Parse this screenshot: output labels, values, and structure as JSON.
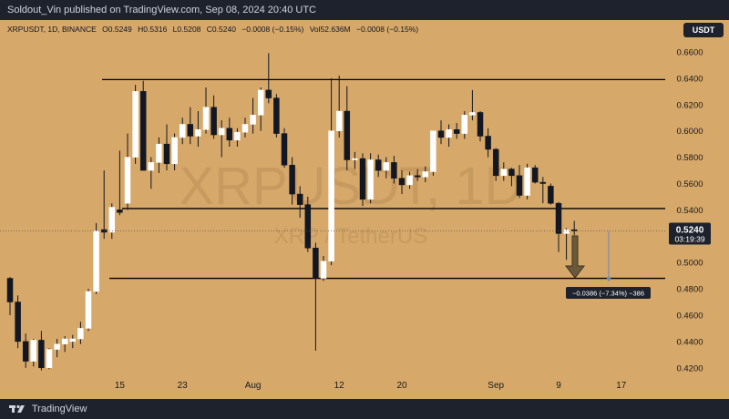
{
  "header": {
    "published_text": "Soldout_Vin published on TradingView.com, Sep 08, 2024 20:40 UTC"
  },
  "symbol_line": {
    "symbol": "XRPUSDT, 1D, BINANCE",
    "open": "O0.5249",
    "high": "H0.5316",
    "low": "L0.5208",
    "close": "C0.5240",
    "change": "−0.0008 (−0.15%)",
    "volume": "Vol52.636M",
    "volume_change": "−0.0008 (−0.15%)"
  },
  "currency_badge": "USDT",
  "footer": {
    "brand": "TradingView"
  },
  "colors": {
    "background": "#d6a86a",
    "bull": "#ffffff",
    "bear": "#131722",
    "line": "#000000",
    "arrow": "#6b5a3a",
    "price_label_bg": "#1e222d"
  },
  "chart_data": {
    "type": "candlestick",
    "title": "",
    "ylim": [
      0.41,
      0.67
    ],
    "y_ticks": [
      "0.6600",
      "0.6400",
      "0.6200",
      "0.6000",
      "0.5800",
      "0.5600",
      "0.5400",
      "0.5200",
      "0.5000",
      "0.4800",
      "0.4600",
      "0.4400",
      "0.4200"
    ],
    "x_ticks": [
      {
        "label": "15",
        "day": 14
      },
      {
        "label": "23",
        "day": 22
      },
      {
        "label": "Aug",
        "day": 31
      },
      {
        "label": "12",
        "day": 42
      },
      {
        "label": "20",
        "day": 50
      },
      {
        "label": "Sep",
        "day": 62
      },
      {
        "label": "9",
        "day": 70
      },
      {
        "label": "17",
        "day": 78
      }
    ],
    "candles": [
      {
        "o": 0.488,
        "h": 0.489,
        "l": 0.46,
        "c": 0.47
      },
      {
        "o": 0.47,
        "h": 0.475,
        "l": 0.435,
        "c": 0.44
      },
      {
        "o": 0.44,
        "h": 0.446,
        "l": 0.42,
        "c": 0.425
      },
      {
        "o": 0.425,
        "h": 0.442,
        "l": 0.421,
        "c": 0.441
      },
      {
        "o": 0.441,
        "h": 0.448,
        "l": 0.418,
        "c": 0.42
      },
      {
        "o": 0.42,
        "h": 0.435,
        "l": 0.419,
        "c": 0.434
      },
      {
        "o": 0.434,
        "h": 0.442,
        "l": 0.428,
        "c": 0.438
      },
      {
        "o": 0.438,
        "h": 0.444,
        "l": 0.432,
        "c": 0.442
      },
      {
        "o": 0.44,
        "h": 0.445,
        "l": 0.435,
        "c": 0.442
      },
      {
        "o": 0.442,
        "h": 0.455,
        "l": 0.438,
        "c": 0.45
      },
      {
        "o": 0.45,
        "h": 0.48,
        "l": 0.448,
        "c": 0.478
      },
      {
        "o": 0.478,
        "h": 0.53,
        "l": 0.476,
        "c": 0.524
      },
      {
        "o": 0.525,
        "h": 0.57,
        "l": 0.518,
        "c": 0.523
      },
      {
        "o": 0.523,
        "h": 0.545,
        "l": 0.518,
        "c": 0.542
      },
      {
        "o": 0.54,
        "h": 0.585,
        "l": 0.536,
        "c": 0.538
      },
      {
        "o": 0.545,
        "h": 0.598,
        "l": 0.54,
        "c": 0.58
      },
      {
        "o": 0.58,
        "h": 0.635,
        "l": 0.575,
        "c": 0.63
      },
      {
        "o": 0.63,
        "h": 0.638,
        "l": 0.57,
        "c": 0.57
      },
      {
        "o": 0.57,
        "h": 0.58,
        "l": 0.556,
        "c": 0.576
      },
      {
        "o": 0.576,
        "h": 0.595,
        "l": 0.568,
        "c": 0.59
      },
      {
        "o": 0.59,
        "h": 0.605,
        "l": 0.57,
        "c": 0.575
      },
      {
        "o": 0.575,
        "h": 0.598,
        "l": 0.57,
        "c": 0.595
      },
      {
        "o": 0.595,
        "h": 0.61,
        "l": 0.59,
        "c": 0.605
      },
      {
        "o": 0.605,
        "h": 0.618,
        "l": 0.59,
        "c": 0.596
      },
      {
        "o": 0.596,
        "h": 0.615,
        "l": 0.588,
        "c": 0.601
      },
      {
        "o": 0.601,
        "h": 0.633,
        "l": 0.598,
        "c": 0.618
      },
      {
        "o": 0.618,
        "h": 0.627,
        "l": 0.594,
        "c": 0.597
      },
      {
        "o": 0.597,
        "h": 0.608,
        "l": 0.58,
        "c": 0.602
      },
      {
        "o": 0.602,
        "h": 0.61,
        "l": 0.588,
        "c": 0.593
      },
      {
        "o": 0.593,
        "h": 0.602,
        "l": 0.588,
        "c": 0.599
      },
      {
        "o": 0.599,
        "h": 0.61,
        "l": 0.595,
        "c": 0.605
      },
      {
        "o": 0.605,
        "h": 0.625,
        "l": 0.598,
        "c": 0.612
      },
      {
        "o": 0.612,
        "h": 0.633,
        "l": 0.6,
        "c": 0.631
      },
      {
        "o": 0.631,
        "h": 0.659,
        "l": 0.621,
        "c": 0.625
      },
      {
        "o": 0.625,
        "h": 0.628,
        "l": 0.595,
        "c": 0.598
      },
      {
        "o": 0.598,
        "h": 0.602,
        "l": 0.572,
        "c": 0.574
      },
      {
        "o": 0.574,
        "h": 0.58,
        "l": 0.544,
        "c": 0.552
      },
      {
        "o": 0.552,
        "h": 0.558,
        "l": 0.534,
        "c": 0.544
      },
      {
        "o": 0.544,
        "h": 0.55,
        "l": 0.508,
        "c": 0.511
      },
      {
        "o": 0.511,
        "h": 0.515,
        "l": 0.433,
        "c": 0.488
      },
      {
        "o": 0.488,
        "h": 0.505,
        "l": 0.486,
        "c": 0.501
      },
      {
        "o": 0.501,
        "h": 0.64,
        "l": 0.498,
        "c": 0.6
      },
      {
        "o": 0.6,
        "h": 0.642,
        "l": 0.595,
        "c": 0.615
      },
      {
        "o": 0.615,
        "h": 0.634,
        "l": 0.57,
        "c": 0.578
      },
      {
        "o": 0.578,
        "h": 0.584,
        "l": 0.571,
        "c": 0.579
      },
      {
        "o": 0.579,
        "h": 0.583,
        "l": 0.543,
        "c": 0.548
      },
      {
        "o": 0.548,
        "h": 0.583,
        "l": 0.545,
        "c": 0.578
      },
      {
        "o": 0.578,
        "h": 0.582,
        "l": 0.565,
        "c": 0.57
      },
      {
        "o": 0.57,
        "h": 0.58,
        "l": 0.564,
        "c": 0.576
      },
      {
        "o": 0.576,
        "h": 0.581,
        "l": 0.56,
        "c": 0.564
      },
      {
        "o": 0.564,
        "h": 0.57,
        "l": 0.552,
        "c": 0.559
      },
      {
        "o": 0.559,
        "h": 0.569,
        "l": 0.556,
        "c": 0.566
      },
      {
        "o": 0.566,
        "h": 0.571,
        "l": 0.562,
        "c": 0.565
      },
      {
        "o": 0.565,
        "h": 0.573,
        "l": 0.561,
        "c": 0.569
      },
      {
        "o": 0.569,
        "h": 0.6,
        "l": 0.566,
        "c": 0.6
      },
      {
        "o": 0.6,
        "h": 0.608,
        "l": 0.59,
        "c": 0.595
      },
      {
        "o": 0.595,
        "h": 0.605,
        "l": 0.588,
        "c": 0.601
      },
      {
        "o": 0.601,
        "h": 0.606,
        "l": 0.594,
        "c": 0.598
      },
      {
        "o": 0.598,
        "h": 0.615,
        "l": 0.594,
        "c": 0.612
      },
      {
        "o": 0.612,
        "h": 0.631,
        "l": 0.608,
        "c": 0.614
      },
      {
        "o": 0.614,
        "h": 0.615,
        "l": 0.592,
        "c": 0.596
      },
      {
        "o": 0.596,
        "h": 0.602,
        "l": 0.58,
        "c": 0.586
      },
      {
        "o": 0.586,
        "h": 0.587,
        "l": 0.562,
        "c": 0.566
      },
      {
        "o": 0.566,
        "h": 0.576,
        "l": 0.562,
        "c": 0.571
      },
      {
        "o": 0.571,
        "h": 0.572,
        "l": 0.558,
        "c": 0.566
      },
      {
        "o": 0.566,
        "h": 0.574,
        "l": 0.549,
        "c": 0.551
      },
      {
        "o": 0.551,
        "h": 0.575,
        "l": 0.548,
        "c": 0.572
      },
      {
        "o": 0.572,
        "h": 0.574,
        "l": 0.56,
        "c": 0.561
      },
      {
        "o": 0.561,
        "h": 0.565,
        "l": 0.545,
        "c": 0.56
      },
      {
        "o": 0.558,
        "h": 0.56,
        "l": 0.544,
        "c": 0.545
      },
      {
        "o": 0.545,
        "h": 0.546,
        "l": 0.508,
        "c": 0.522
      },
      {
        "o": 0.522,
        "h": 0.526,
        "l": 0.502,
        "c": 0.5249
      },
      {
        "o": 0.5249,
        "h": 0.5316,
        "l": 0.5208,
        "c": 0.524
      }
    ],
    "horizontal_levels": [
      0.639,
      0.541,
      0.488
    ],
    "current_price": {
      "value": "0.5240",
      "countdown": "03:19:39",
      "price": 0.524
    },
    "measure": {
      "label": "−0.0386 (−7.34%) −386",
      "from": 0.524,
      "to": 0.4854
    },
    "watermark": {
      "symbol": "XRPUSDT, 1D",
      "subtitle": "XRP / TetherUS"
    }
  }
}
